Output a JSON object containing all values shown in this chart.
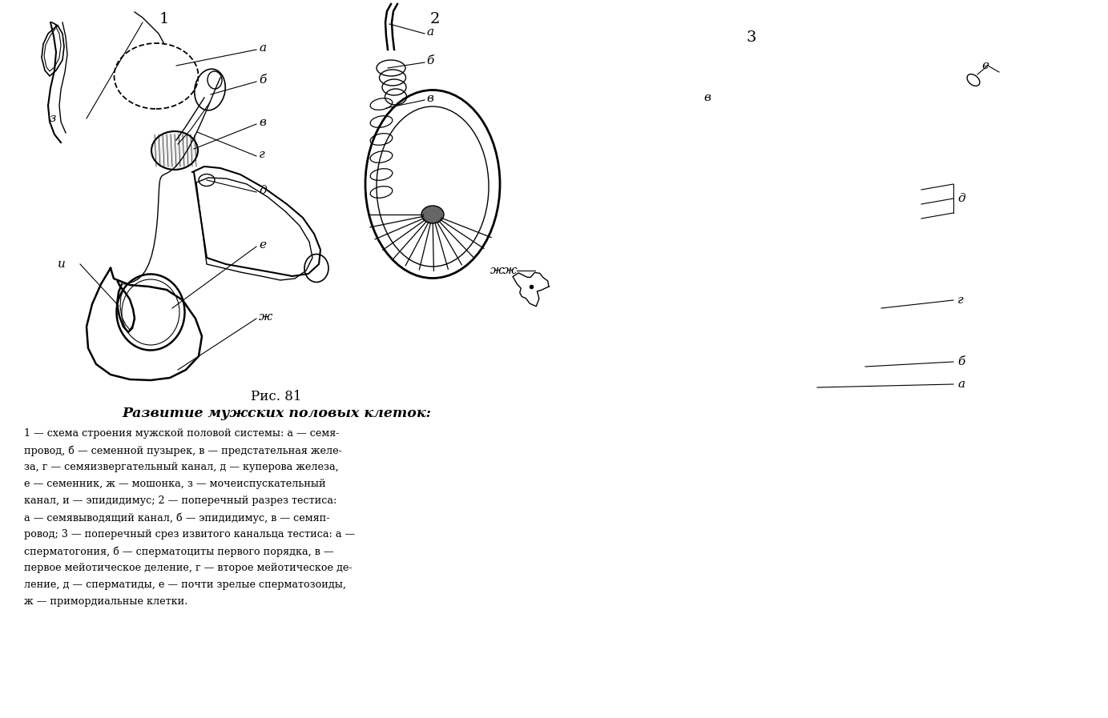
{
  "bg_color": "#ffffff",
  "fig_width": 13.83,
  "fig_height": 8.97,
  "title_fig": "Рис. 81",
  "title_main": "Развитие мужских половых клеток:",
  "caption_lines": [
    "1 — схема строения мужской половой системы: а — семя-",
    "провод, б — семенной пузырек, в — предстательная желе-",
    "за, г — семяизвергательный канал, д — куперова железа,",
    "е — семенник, ж — мошонка, з — мочеиспускательный",
    "канал, и — эпидидимус; 2 — поперечный разрез тестиса:",
    "а — семявыводящий канал, б — эпидидимус, в — семяп-",
    "ровод; 3 — поперечный срез извитого канальца тестиса: а —",
    "сперматогония, б — сперматоциты первого порядка, в —",
    "первое мейотическое деление, г — второе мейотическое де-",
    "ление, д — сперматиды, е — почти зрелые сперматозоиды,",
    "ж — примордиальные клетки."
  ],
  "ink": "#000000",
  "label1": "1",
  "label2": "2",
  "label3": "3"
}
